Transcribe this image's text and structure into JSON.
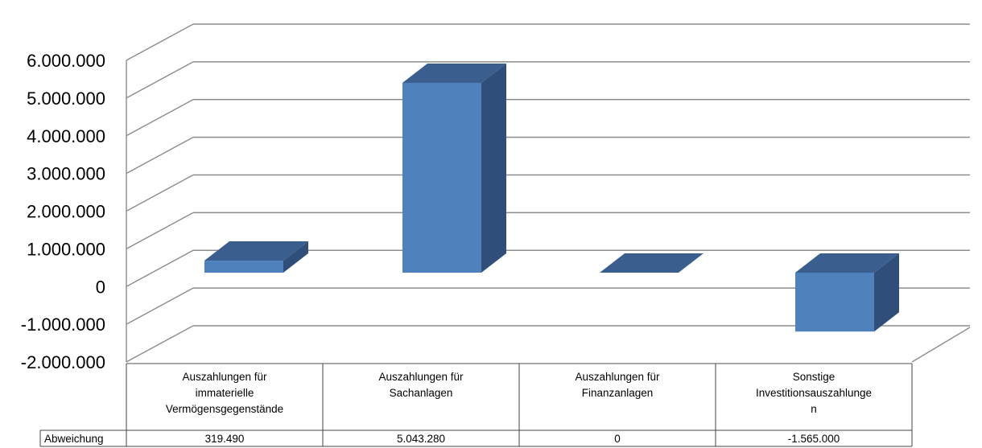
{
  "chart_data": {
    "type": "bar",
    "categories": [
      [
        "Auszahlungen für",
        "immaterielle",
        "Vermögensgegenstände"
      ],
      [
        "Auszahlungen für",
        "Sachanlagen"
      ],
      [
        "Auszahlungen für",
        "Finanzanlagen"
      ],
      [
        "Sonstige",
        "Investitionsauszahlunge",
        "n"
      ]
    ],
    "series": [
      {
        "name": "Abweichung",
        "values": [
          319490,
          5043280,
          0,
          -1565000
        ],
        "value_labels": [
          "319.490",
          "5.043.280",
          "0",
          "-1.565.000"
        ]
      }
    ],
    "ylim": [
      -2000000,
      6000000
    ],
    "yticks": [
      -2000000,
      -1000000,
      0,
      1000000,
      2000000,
      3000000,
      4000000,
      5000000,
      6000000
    ],
    "ytick_labels": [
      "-2.000.000",
      "-1.000.000",
      "0",
      "1.000.000",
      "2.000.000",
      "3.000.000",
      "4.000.000",
      "5.000.000",
      "6.000.000"
    ],
    "grid": true,
    "three_d": true,
    "data_table": true,
    "colors": {
      "front": "#4f81bd",
      "top": "#3a5f8e",
      "side": "#2f4f7a",
      "grid": "#8c8c8c"
    }
  }
}
